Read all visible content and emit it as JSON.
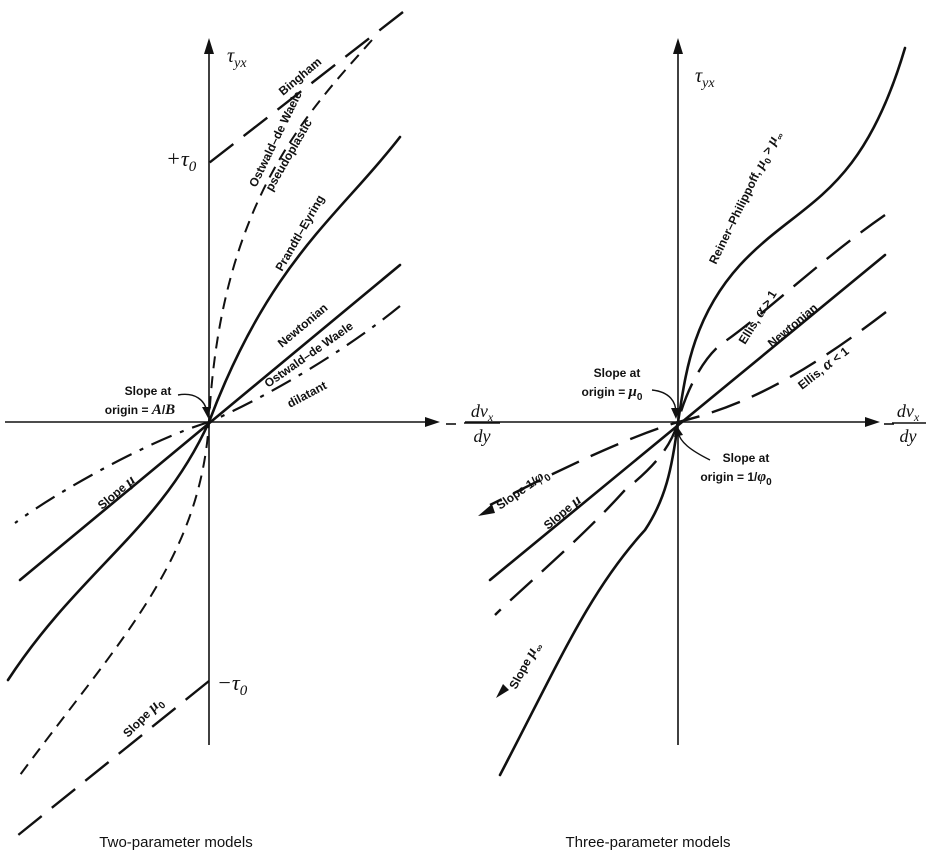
{
  "left_panel": {
    "y_axis_label": "τ_yx",
    "x_axis_label_num": "dv_x",
    "x_axis_label_den": "dy",
    "plus_tau0": "+τ_0",
    "minus_tau0": "−τ_0",
    "curves": {
      "bingham": "Bingham",
      "ow_pseudo_1": "Ostwald–de Waele",
      "ow_pseudo_2": "pseudoplastic",
      "prandtl": "Prandtl–Eyring",
      "newtonian": "Newtonian",
      "ow_dil_1": "Ostwald–de Waele",
      "ow_dil_2": "dilatant"
    },
    "slope_origin_1": "Slope at",
    "slope_origin_2": "origin = A/B",
    "slope_mu": "Slope μ",
    "slope_mu0": "Slope μ_0",
    "caption": "Two-parameter models"
  },
  "right_panel": {
    "y_axis_label": "τ_yx",
    "x_axis_label_num": "dv_x",
    "x_axis_label_den": "dy",
    "curves": {
      "reiner": "Reiner–Philippoff, μ_0 > μ_∞",
      "ellis_gt": "Ellis, α > 1",
      "newtonian": "Newtonian",
      "ellis_lt": "Ellis, α < 1"
    },
    "slope_origin_mu0_1": "Slope at",
    "slope_origin_mu0_2": "origin = μ_0",
    "slope_origin_phi_1": "Slope at",
    "slope_origin_phi_2": "origin = 1/φ_0",
    "slope_phi0": "Slope 1/φ_0",
    "slope_mu": "Slope μ",
    "slope_muinf": "Slope μ_∞",
    "caption": "Three-parameter models"
  }
}
